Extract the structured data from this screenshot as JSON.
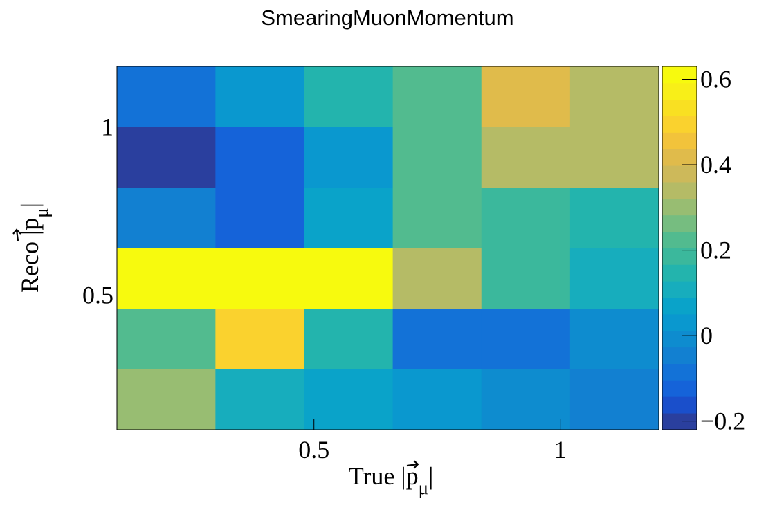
{
  "chart_data": {
    "type": "heatmap",
    "title": "SmearingMuonMomentum",
    "xlabel": {
      "prefix": "True |",
      "symbol": "p",
      "sub": "μ",
      "suffix": "|"
    },
    "ylabel": {
      "prefix": "Reco |",
      "symbol": "p",
      "sub": "μ",
      "suffix": "|"
    },
    "x_bin_edges": [
      0.1,
      0.3,
      0.48,
      0.66,
      0.84,
      1.02,
      1.2
    ],
    "y_bin_edges": [
      0.1,
      0.28,
      0.46,
      0.64,
      0.82,
      1.0,
      1.18
    ],
    "xlim": [
      0.1,
      1.2
    ],
    "ylim": [
      0.1,
      1.18
    ],
    "x_ticks": [
      {
        "value": 0.5,
        "label": "0.5"
      },
      {
        "value": 1.0,
        "label": "1"
      }
    ],
    "y_ticks": [
      {
        "value": 0.5,
        "label": "0.5"
      },
      {
        "value": 1.0,
        "label": "1"
      }
    ],
    "z_values_rows_bottom_to_top": [
      [
        0.31,
        0.09,
        0.06,
        0.02,
        0.0,
        -0.06
      ],
      [
        0.24,
        0.5,
        0.15,
        -0.08,
        -0.08,
        -0.02
      ],
      [
        0.61,
        0.64,
        0.62,
        0.33,
        0.18,
        0.1
      ],
      [
        -0.06,
        -0.13,
        0.08,
        0.24,
        0.18,
        0.15
      ],
      [
        -0.21,
        -0.13,
        0.04,
        0.24,
        0.33,
        0.33
      ],
      [
        -0.1,
        0.04,
        0.15,
        0.24,
        0.41,
        0.33
      ]
    ],
    "zlim": [
      -0.22,
      0.63
    ],
    "z_ticks": [
      {
        "value": 0.6,
        "label": "0.6"
      },
      {
        "value": 0.4,
        "label": "0.4"
      },
      {
        "value": 0.2,
        "label": "0.2"
      },
      {
        "value": 0.0,
        "label": "0"
      },
      {
        "value": -0.2,
        "label": "−0.2"
      }
    ],
    "palette": [
      "#2a3f9e",
      "#1a4fcb",
      "#1563d9",
      "#1372d7",
      "#1280d1",
      "#0e8ccf",
      "#0a98cf",
      "#0aa3c9",
      "#17adbd",
      "#23b4ad",
      "#3bb89c",
      "#52bb8f",
      "#76bd80",
      "#98bd72",
      "#b5bb66",
      "#cdb95a",
      "#e0bb4b",
      "#f2c33b",
      "#fad22e",
      "#f9e022",
      "#f8ef18",
      "#f7fa0e"
    ]
  }
}
